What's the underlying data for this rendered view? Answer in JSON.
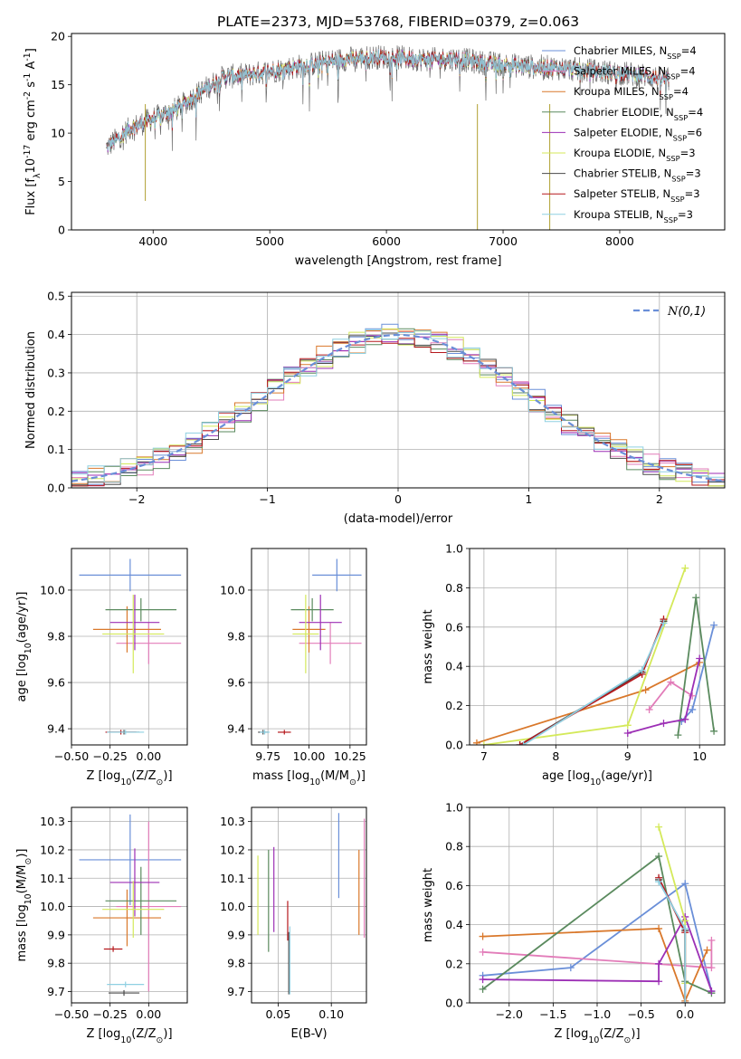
{
  "title": "PLATE=2373, MJD=53768, FIBERID=0379, z=0.063",
  "colors": {
    "Chabrier MILES": "#6a8fd8",
    "Salpeter MILES": "#e27cb9",
    "Kroupa MILES": "#d9782b",
    "Chabrier ELODIE": "#5a8a5e",
    "Salpeter ELODIE": "#9c2fb5",
    "Kroupa ELODIE": "#d4e95a",
    "Chabrier STELIB": "#4a4a4a",
    "Salpeter STELIB": "#b5191d",
    "Kroupa STELIB": "#8fd0e2"
  },
  "chart_data": [
    {
      "id": "spectrum",
      "type": "line",
      "xlabel": "wavelength [Angstrom, rest frame]",
      "ylabel": "Flux [f$_\\lambda$10$^{-17}$ erg cm$^{-2}$ s$^{-1}$ A$^{-1}$]",
      "xlim": [
        3300,
        8900
      ],
      "ylim": [
        0,
        20.3
      ],
      "xticks": [
        4000,
        5000,
        6000,
        7000,
        8000
      ],
      "yticks": [
        0,
        5,
        10,
        15,
        20
      ],
      "legend_position": "top-right",
      "series": [
        {
          "name": "Chabrier MILES",
          "nssp": "4"
        },
        {
          "name": "Salpeter MILES",
          "nssp": "4"
        },
        {
          "name": "Kroupa MILES",
          "nssp": "4"
        },
        {
          "name": "Chabrier ELODIE",
          "nssp": "4"
        },
        {
          "name": "Salpeter ELODIE",
          "nssp": "6"
        },
        {
          "name": "Kroupa ELODIE",
          "nssp": "3"
        },
        {
          "name": "Chabrier STELIB",
          "nssp": "3"
        },
        {
          "name": "Salpeter STELIB",
          "nssp": "3"
        },
        {
          "name": "Kroupa STELIB",
          "nssp": "3"
        }
      ],
      "continuum_x": [
        3600,
        3800,
        4000,
        4200,
        4400,
        4600,
        4800,
        5000,
        5200,
        5400,
        5600,
        5800,
        6000,
        6200,
        6400,
        6600,
        6800,
        7000,
        7200,
        7400,
        7600,
        7800,
        8000,
        8200,
        8400
      ],
      "continuum_y": [
        8.5,
        10.5,
        11.5,
        12.5,
        14.2,
        15.8,
        16.0,
        16.4,
        16.8,
        17.2,
        17.6,
        17.8,
        17.9,
        17.7,
        17.6,
        17.7,
        17.3,
        17.1,
        16.9,
        16.8,
        16.6,
        16.4,
        16.2,
        16.0,
        15.5
      ]
    },
    {
      "id": "residual_hist",
      "type": "line",
      "xlabel": "(data-model)/error",
      "ylabel": "Normed distribution",
      "xlim": [
        -2.5,
        2.5
      ],
      "ylim": [
        0,
        0.51
      ],
      "xticks": [
        -2,
        -1,
        0,
        1,
        2
      ],
      "yticks": [
        0.0,
        0.1,
        0.2,
        0.3,
        0.4,
        0.5
      ],
      "legend_position": "top-right",
      "legend_label": "$\\mathcal{N}(0,1)$"
    },
    {
      "id": "age_vs_Z",
      "type": "scatter",
      "xlabel": "Z [log$_{10}$(Z/Z$_\\odot$)]",
      "ylabel": "age  [log$_{10}$(age/yr)]",
      "xlim": [
        -0.5,
        0.25
      ],
      "ylim": [
        9.33,
        10.18
      ],
      "xticks": [
        -0.5,
        -0.25,
        0.0
      ],
      "yticks": [
        9.4,
        9.6,
        9.8,
        10.0
      ],
      "points": [
        {
          "s": "Chabrier MILES",
          "x": -0.12,
          "y": 10.065,
          "xerr": 0.33,
          "yerr": 0.07
        },
        {
          "s": "Salpeter MILES",
          "x": 0.0,
          "y": 9.77,
          "xerr": 0.21,
          "yerr": 0.09
        },
        {
          "s": "Kroupa MILES",
          "x": -0.14,
          "y": 9.83,
          "xerr": 0.22,
          "yerr": 0.1
        },
        {
          "s": "Chabrier ELODIE",
          "x": -0.05,
          "y": 9.915,
          "xerr": 0.23,
          "yerr": 0.05
        },
        {
          "s": "Salpeter ELODIE",
          "x": -0.09,
          "y": 9.86,
          "xerr": 0.16,
          "yerr": 0.12
        },
        {
          "s": "Kroupa ELODIE",
          "x": -0.1,
          "y": 9.81,
          "xerr": 0.2,
          "yerr": 0.17
        },
        {
          "s": "Chabrier STELIB",
          "x": -0.16,
          "y": 9.385,
          "xerr": 0.1,
          "yerr": 0.01
        },
        {
          "s": "Salpeter STELIB",
          "x": -0.18,
          "y": 9.385,
          "xerr": 0.1,
          "yerr": 0.01
        },
        {
          "s": "Kroupa STELIB",
          "x": -0.15,
          "y": 9.385,
          "xerr": 0.12,
          "yerr": 0.01
        }
      ]
    },
    {
      "id": "age_vs_mass",
      "type": "scatter",
      "xlabel": "mass [log$_{10}$(M/M$_\\odot$)]",
      "ylabel": "",
      "xlim": [
        9.65,
        10.35
      ],
      "ylim": [
        9.33,
        10.18
      ],
      "xticks": [
        9.75,
        10.0,
        10.25
      ],
      "yticks": [
        9.4,
        9.6,
        9.8,
        10.0
      ],
      "points": [
        {
          "s": "Chabrier MILES",
          "x": 10.17,
          "y": 10.065,
          "xerr": 0.15,
          "yerr": 0.07
        },
        {
          "s": "Salpeter MILES",
          "x": 10.13,
          "y": 9.77,
          "xerr": 0.19,
          "yerr": 0.09
        },
        {
          "s": "Kroupa MILES",
          "x": 10.0,
          "y": 9.83,
          "xerr": 0.1,
          "yerr": 0.1
        },
        {
          "s": "Chabrier ELODIE",
          "x": 10.02,
          "y": 9.915,
          "xerr": 0.13,
          "yerr": 0.05
        },
        {
          "s": "Salpeter ELODIE",
          "x": 10.07,
          "y": 9.86,
          "xerr": 0.13,
          "yerr": 0.12
        },
        {
          "s": "Kroupa ELODIE",
          "x": 9.98,
          "y": 9.81,
          "xerr": 0.08,
          "yerr": 0.17
        },
        {
          "s": "Chabrier STELIB",
          "x": 9.72,
          "y": 9.385,
          "xerr": 0.03,
          "yerr": 0.01
        },
        {
          "s": "Salpeter STELIB",
          "x": 9.85,
          "y": 9.385,
          "xerr": 0.04,
          "yerr": 0.01
        },
        {
          "s": "Kroupa STELIB",
          "x": 9.73,
          "y": 9.385,
          "xerr": 0.03,
          "yerr": 0.01
        }
      ]
    },
    {
      "id": "mass_weight_vs_age",
      "type": "line",
      "xlabel": "age  [log$_{10}$(age/yr)]",
      "ylabel": "mass weight",
      "xlim": [
        6.8,
        10.35
      ],
      "ylim": [
        0,
        1.0
      ],
      "xticks": [
        7,
        8,
        9,
        10
      ],
      "yticks": [
        0.0,
        0.2,
        0.4,
        0.6,
        0.8,
        1.0
      ],
      "series": [
        {
          "name": "Chabrier MILES",
          "x": [
            9.75,
            9.9,
            10.2
          ],
          "y": [
            0.12,
            0.18,
            0.61
          ]
        },
        {
          "name": "Salpeter MILES",
          "x": [
            9.3,
            9.6,
            9.9
          ],
          "y": [
            0.18,
            0.32,
            0.25
          ]
        },
        {
          "name": "Kroupa MILES",
          "x": [
            6.9,
            9.25,
            10.0
          ],
          "y": [
            0.01,
            0.28,
            0.42
          ]
        },
        {
          "name": "Chabrier ELODIE",
          "x": [
            9.7,
            9.95,
            10.2
          ],
          "y": [
            0.05,
            0.75,
            0.07
          ]
        },
        {
          "name": "Salpeter ELODIE",
          "x": [
            9.0,
            9.5,
            9.8,
            10.0
          ],
          "y": [
            0.06,
            0.11,
            0.13,
            0.44
          ]
        },
        {
          "name": "Kroupa ELODIE",
          "x": [
            7.0,
            9.0,
            9.8
          ],
          "y": [
            0.0,
            0.1,
            0.9
          ]
        },
        {
          "name": "Chabrier STELIB",
          "x": [
            7.5,
            9.2,
            9.5
          ],
          "y": [
            0.0,
            0.37,
            0.63
          ]
        },
        {
          "name": "Salpeter STELIB",
          "x": [
            7.5,
            9.2,
            9.5
          ],
          "y": [
            0.0,
            0.36,
            0.64
          ]
        },
        {
          "name": "Kroupa STELIB",
          "x": [
            7.55,
            9.2,
            9.5
          ],
          "y": [
            0.0,
            0.38,
            0.62
          ]
        }
      ]
    },
    {
      "id": "mass_vs_Z",
      "type": "scatter",
      "xlabel": "Z [log$_{10}$(Z/Z$_\\odot$)]",
      "ylabel": "mass [log$_{10}$(M/M$_\\odot$)]",
      "xlim": [
        -0.5,
        0.25
      ],
      "ylim": [
        9.66,
        10.35
      ],
      "xticks": [
        -0.5,
        -0.25,
        0.0
      ],
      "yticks": [
        9.7,
        9.8,
        9.9,
        10.0,
        10.1,
        10.2,
        10.3
      ],
      "points": [
        {
          "s": "Chabrier MILES",
          "x": -0.12,
          "y": 10.165,
          "xerr": 0.33,
          "yerr": 0.16
        },
        {
          "s": "Salpeter MILES",
          "x": 0.0,
          "y": 10.0,
          "xerr": 0.21,
          "yerr": 0.3
        },
        {
          "s": "Kroupa MILES",
          "x": -0.14,
          "y": 9.96,
          "xerr": 0.22,
          "yerr": 0.1
        },
        {
          "s": "Chabrier ELODIE",
          "x": -0.05,
          "y": 10.02,
          "xerr": 0.23,
          "yerr": 0.12
        },
        {
          "s": "Salpeter ELODIE",
          "x": -0.09,
          "y": 10.085,
          "xerr": 0.16,
          "yerr": 0.12
        },
        {
          "s": "Kroupa ELODIE",
          "x": -0.1,
          "y": 9.99,
          "xerr": 0.2,
          "yerr": 0.1
        },
        {
          "s": "Chabrier STELIB",
          "x": -0.16,
          "y": 9.695,
          "xerr": 0.1,
          "yerr": 0.01
        },
        {
          "s": "Salpeter STELIB",
          "x": -0.23,
          "y": 9.85,
          "xerr": 0.06,
          "yerr": 0.01
        },
        {
          "s": "Kroupa STELIB",
          "x": -0.15,
          "y": 9.725,
          "xerr": 0.12,
          "yerr": 0.01
        }
      ]
    },
    {
      "id": "mass_vs_ebv",
      "type": "scatter",
      "xlabel": "E(B-V)",
      "ylabel": "",
      "xlim": [
        0.025,
        0.133
      ],
      "ylim": [
        9.66,
        10.35
      ],
      "xticks": [
        0.05,
        0.1
      ],
      "yticks": [
        9.7,
        9.8,
        9.9,
        10.0,
        10.1,
        10.2,
        10.3
      ],
      "points": [
        {
          "s": "Chabrier MILES",
          "x": 0.107,
          "y": 10.18,
          "xerr": 0,
          "yerr": 0.15
        },
        {
          "s": "Salpeter MILES",
          "x": 0.131,
          "y": 10.1,
          "xerr": 0,
          "yerr": 0.21
        },
        {
          "s": "Kroupa MILES",
          "x": 0.126,
          "y": 10.05,
          "xerr": 0,
          "yerr": 0.15
        },
        {
          "s": "Chabrier ELODIE",
          "x": 0.041,
          "y": 10.02,
          "xerr": 0,
          "yerr": 0.18
        },
        {
          "s": "Salpeter ELODIE",
          "x": 0.046,
          "y": 10.06,
          "xerr": 0,
          "yerr": 0.15
        },
        {
          "s": "Kroupa ELODIE",
          "x": 0.031,
          "y": 10.04,
          "xerr": 0,
          "yerr": 0.14
        },
        {
          "s": "Chabrier STELIB",
          "x": 0.06,
          "y": 9.8,
          "xerr": 0,
          "yerr": 0.11
        },
        {
          "s": "Salpeter STELIB",
          "x": 0.059,
          "y": 9.95,
          "xerr": 0,
          "yerr": 0.07
        },
        {
          "s": "Kroupa STELIB",
          "x": 0.061,
          "y": 9.81,
          "xerr": 0,
          "yerr": 0.12
        }
      ]
    },
    {
      "id": "mass_weight_vs_Z",
      "type": "line",
      "xlabel": "Z [log$_{10}$(Z/Z$_\\odot$)]",
      "ylabel": "mass weight",
      "xlim": [
        -2.45,
        0.45
      ],
      "ylim": [
        0,
        1.0
      ],
      "xticks": [
        -2.0,
        -1.5,
        -1.0,
        -0.5,
        0.0
      ],
      "yticks": [
        0.0,
        0.2,
        0.4,
        0.6,
        0.8,
        1.0
      ],
      "series": [
        {
          "name": "Chabrier MILES",
          "x": [
            -2.3,
            -1.3,
            0.0,
            0.3
          ],
          "y": [
            0.14,
            0.18,
            0.61,
            0.06
          ]
        },
        {
          "name": "Salpeter MILES",
          "x": [
            -2.3,
            0.3,
            0.3
          ],
          "y": [
            0.26,
            0.18,
            0.32
          ]
        },
        {
          "name": "Kroupa MILES",
          "x": [
            -2.3,
            -0.3,
            0.0,
            0.25
          ],
          "y": [
            0.34,
            0.38,
            0.01,
            0.27
          ]
        },
        {
          "name": "Chabrier ELODIE",
          "x": [
            -2.3,
            -0.3,
            0.0,
            0.3
          ],
          "y": [
            0.07,
            0.75,
            0.11,
            0.05
          ]
        },
        {
          "name": "Salpeter ELODIE",
          "x": [
            -2.3,
            -0.3,
            -0.3,
            0.0,
            0.3
          ],
          "y": [
            0.12,
            0.11,
            0.2,
            0.44,
            0.06
          ]
        },
        {
          "name": "Kroupa ELODIE",
          "x": [
            -0.3,
            0.0,
            0.0
          ],
          "y": [
            0.9,
            0.42,
            0.1
          ]
        },
        {
          "name": "Chabrier STELIB",
          "x": [
            -0.3,
            0.0,
            0.0
          ],
          "y": [
            0.63,
            0.37,
            0.0
          ]
        },
        {
          "name": "Salpeter STELIB",
          "x": [
            -0.3,
            0.0,
            0.0
          ],
          "y": [
            0.64,
            0.36,
            0.0
          ]
        },
        {
          "name": "Kroupa STELIB",
          "x": [
            -0.3,
            0.0,
            0.0
          ],
          "y": [
            0.62,
            0.38,
            0.0
          ]
        }
      ]
    }
  ]
}
